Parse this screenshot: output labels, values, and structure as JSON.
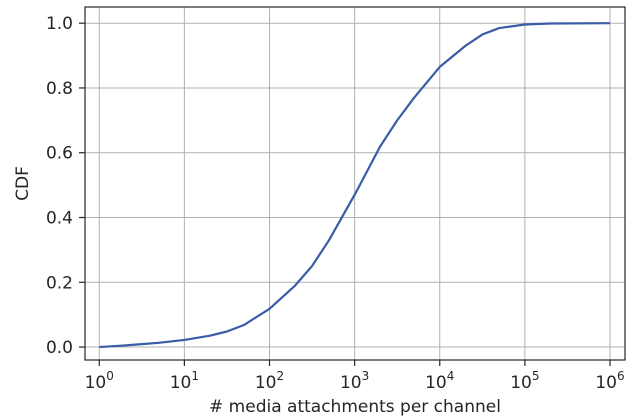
{
  "chart_data": {
    "type": "line",
    "xlabel": "# media attachments per channel",
    "ylabel": "CDF",
    "xscale": "log",
    "xlim": [
      0.68,
      1500000.0
    ],
    "ylim": [
      -0.04,
      1.05
    ],
    "grid": true,
    "x_ticks": [
      {
        "value": 1,
        "base": "10",
        "exp": "0"
      },
      {
        "value": 10,
        "base": "10",
        "exp": "1"
      },
      {
        "value": 100,
        "base": "10",
        "exp": "2"
      },
      {
        "value": 1000,
        "base": "10",
        "exp": "3"
      },
      {
        "value": 10000,
        "base": "10",
        "exp": "4"
      },
      {
        "value": 100000,
        "base": "10",
        "exp": "5"
      },
      {
        "value": 1000000,
        "base": "10",
        "exp": "6"
      }
    ],
    "y_ticks": [
      {
        "value": 0.0,
        "label": "0.0"
      },
      {
        "value": 0.2,
        "label": "0.2"
      },
      {
        "value": 0.4,
        "label": "0.4"
      },
      {
        "value": 0.6,
        "label": "0.6"
      },
      {
        "value": 0.8,
        "label": "0.8"
      },
      {
        "value": 1.0,
        "label": "1.0"
      }
    ],
    "series": [
      {
        "color": "#3a5ba8",
        "x": [
          1,
          2,
          3.16,
          5,
          10,
          20,
          31.6,
          50,
          100,
          200,
          316,
          500,
          1000,
          2000,
          3160,
          5000,
          10000,
          20000,
          31600,
          50000,
          100000,
          200000,
          1000000
        ],
        "y": [
          0.0,
          0.005,
          0.009,
          0.013,
          0.022,
          0.035,
          0.048,
          0.068,
          0.118,
          0.19,
          0.25,
          0.33,
          0.47,
          0.62,
          0.7,
          0.77,
          0.865,
          0.93,
          0.965,
          0.985,
          0.996,
          0.999,
          1.0
        ]
      }
    ]
  }
}
